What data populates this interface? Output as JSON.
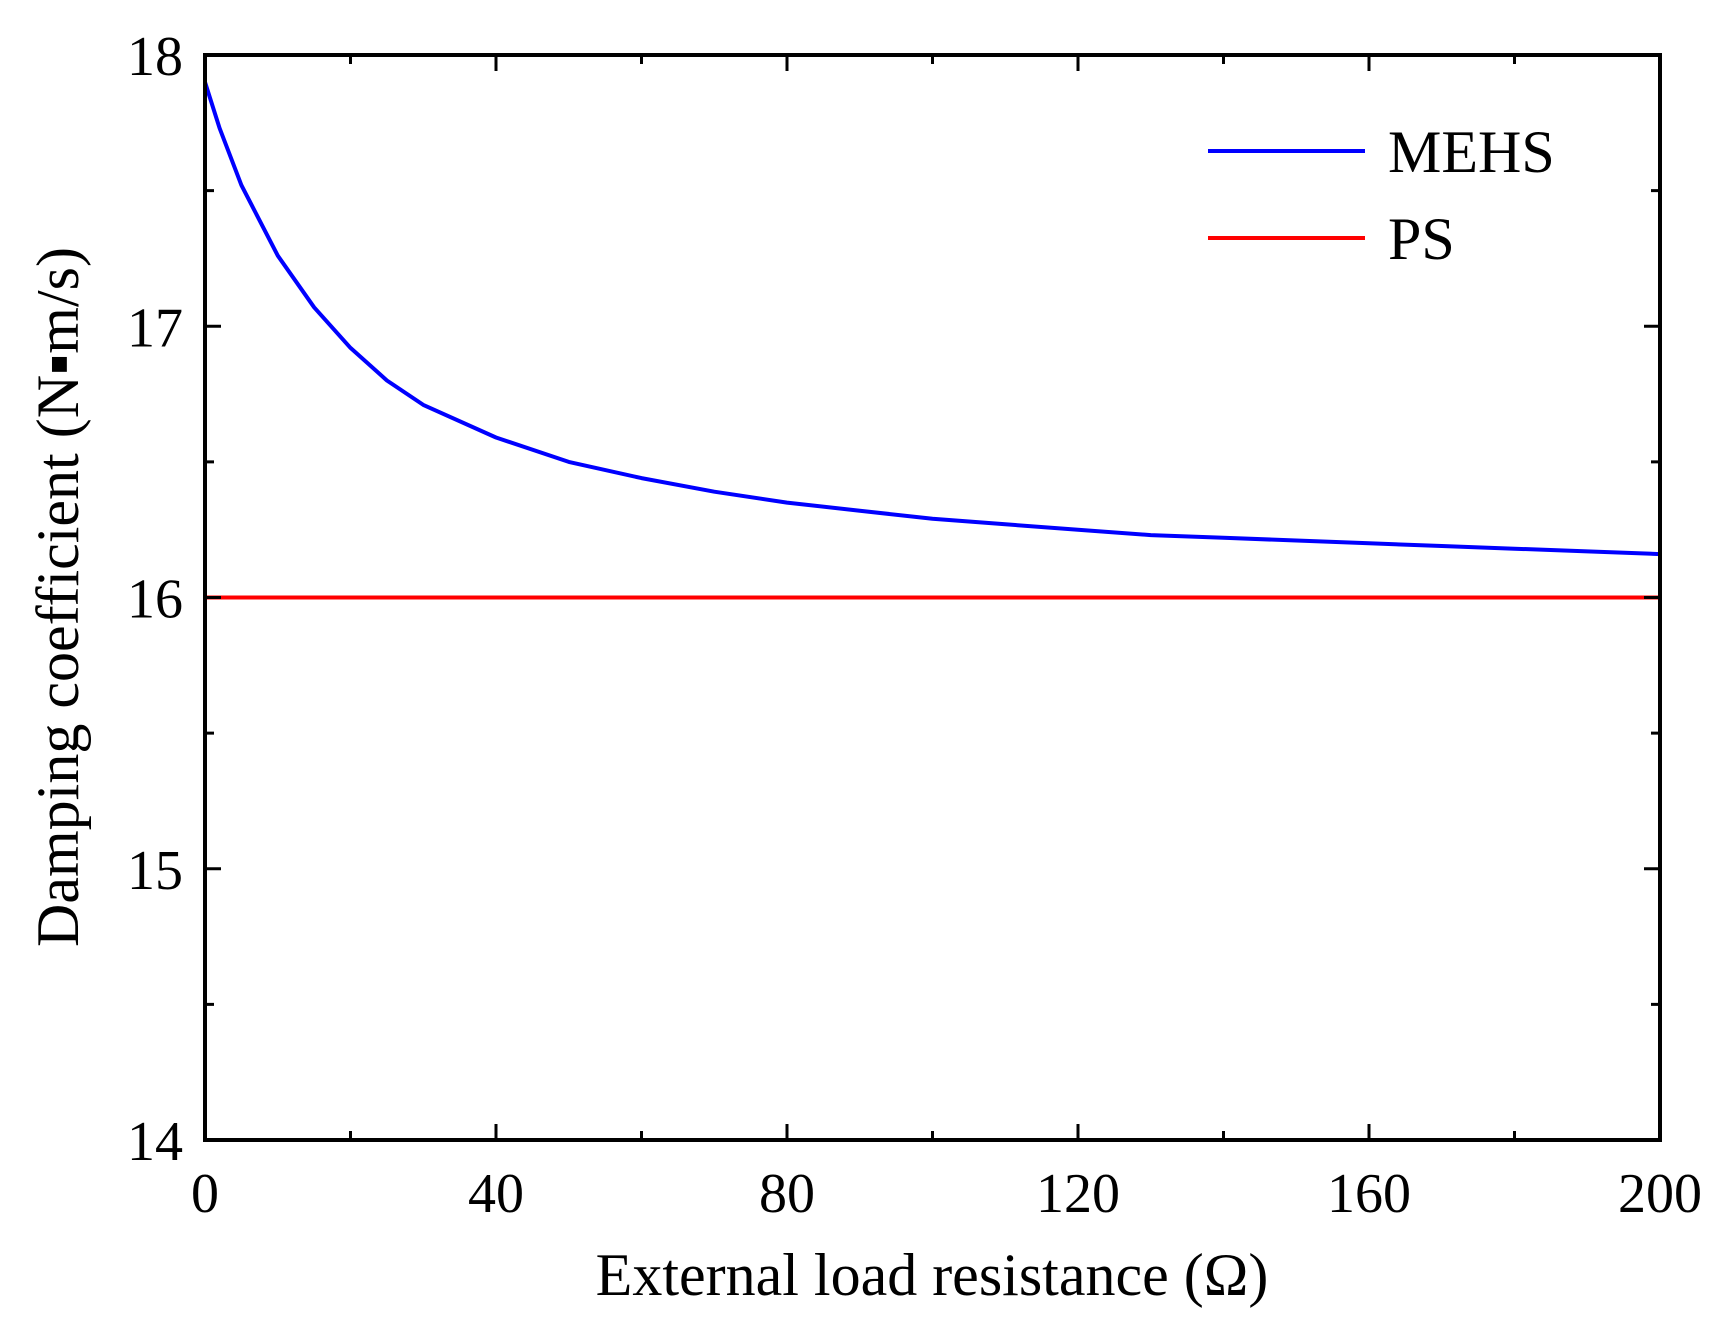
{
  "chart_data": {
    "type": "line",
    "title": "",
    "xlabel": "External load resistance (Ω)",
    "ylabel": "Damping coefficient (N▪m/s)",
    "xlim": [
      0,
      200
    ],
    "ylim": [
      14,
      18
    ],
    "x_ticks": [
      0,
      40,
      80,
      120,
      160,
      200
    ],
    "x_tick_labels": [
      "0",
      "40",
      "80",
      "120",
      "160",
      "200"
    ],
    "y_ticks": [
      14,
      15,
      16,
      17,
      18
    ],
    "y_tick_labels": [
      "14",
      "15",
      "16",
      "17",
      "18"
    ],
    "y_minor_ticks": [
      14.5,
      15.5,
      16.5,
      17.5
    ],
    "x_minor_ticks": [
      20,
      60,
      100,
      140,
      180
    ],
    "grid": false,
    "legend_position": "top-right",
    "series": [
      {
        "name": "MEHS",
        "color": "#0000ff",
        "x": [
          0,
          2,
          5,
          10,
          15,
          20,
          25,
          30,
          40,
          50,
          60,
          70,
          80,
          90,
          100,
          110,
          120,
          130,
          140,
          150,
          160,
          170,
          180,
          190,
          200
        ],
        "y": [
          17.9,
          17.73,
          17.52,
          17.26,
          17.07,
          16.92,
          16.8,
          16.71,
          16.59,
          16.5,
          16.44,
          16.39,
          16.35,
          16.32,
          16.29,
          16.27,
          16.25,
          16.23,
          16.22,
          16.21,
          16.2,
          16.19,
          16.18,
          16.17,
          16.16
        ]
      },
      {
        "name": "PS",
        "color": "#ff0000",
        "x": [
          0,
          200
        ],
        "y": [
          16.0,
          16.0
        ]
      }
    ]
  }
}
